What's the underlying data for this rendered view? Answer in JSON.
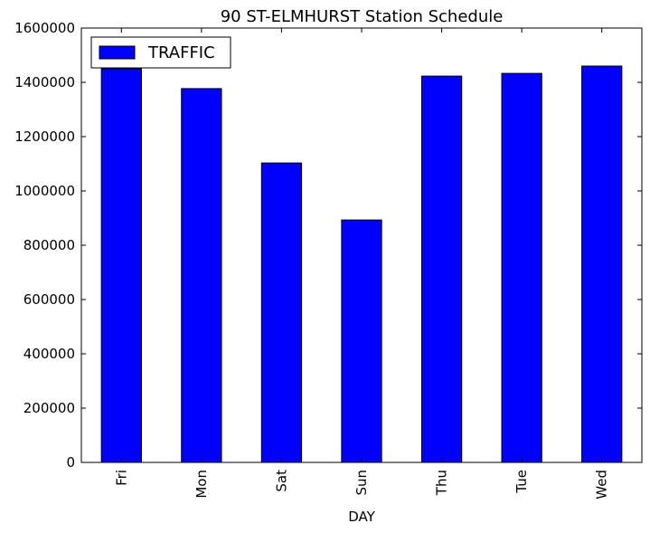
{
  "chart_data": {
    "type": "bar",
    "title": "90 ST-ELMHURST Station Schedule",
    "xlabel": "DAY",
    "ylabel": "",
    "categories": [
      "Fri",
      "Mon",
      "Sat",
      "Sun",
      "Thu",
      "Tue",
      "Wed"
    ],
    "series": [
      {
        "name": "TRAFFIC",
        "values": [
          1450000,
          1377000,
          1103000,
          893000,
          1423000,
          1433000,
          1460000
        ],
        "color": "#0000ff"
      }
    ],
    "ylim": [
      0,
      1600000
    ],
    "yticks": [
      0,
      200000,
      400000,
      600000,
      800000,
      1000000,
      1200000,
      1400000,
      1600000
    ],
    "grid": false,
    "legend": {
      "position": "top-left"
    }
  }
}
